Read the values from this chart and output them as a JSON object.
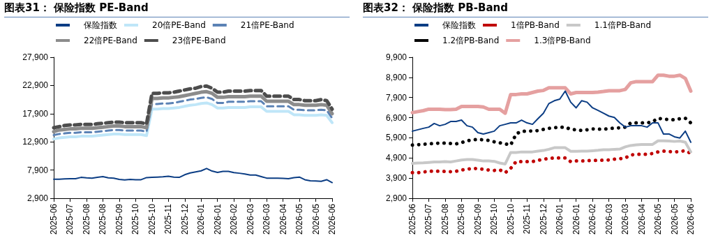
{
  "chart_data": [
    {
      "type": "line",
      "title": "图表31：  保险指数 PE-Band",
      "categories": [
        "2025-06",
        null,
        null,
        "2025-07",
        null,
        null,
        "2025-08",
        null,
        null,
        "2025-08",
        null,
        null,
        "2025-09",
        null,
        null,
        "2025-10",
        null,
        null,
        "2025-10",
        null,
        null,
        "2025-11",
        null,
        null,
        "2025-12",
        null,
        null,
        "2026-01",
        null,
        null,
        "2026-01",
        null,
        null,
        "2026-02",
        null,
        null,
        "2026-03",
        null,
        null,
        "2026-03",
        null,
        null,
        "2026-04",
        null,
        null,
        "2026-05",
        null,
        null,
        "2026-05",
        null,
        null,
        "2026-06"
      ],
      "ylim": [
        2900,
        27900
      ],
      "yticks": [
        {
          "value": 2900,
          "label": "2,900"
        },
        {
          "value": 7900,
          "label": "7,900"
        },
        {
          "value": 12900,
          "label": "12,900"
        },
        {
          "value": 17900,
          "label": "17,900"
        },
        {
          "value": 22900,
          "label": "22,900"
        },
        {
          "value": 27900,
          "label": "27,900"
        }
      ],
      "grid": false,
      "legend": "top",
      "marker": "none",
      "series": [
        {
          "name": "保险指数",
          "color": "#0b3d84",
          "line_style": "solid",
          "values": [
            6280,
            6280,
            6330,
            6370,
            6370,
            6600,
            6510,
            6470,
            6600,
            6740,
            6510,
            6470,
            6230,
            6140,
            6230,
            6190,
            6190,
            6560,
            6600,
            6650,
            6700,
            6790,
            6650,
            6600,
            7070,
            7390,
            7580,
            7760,
            8180,
            7720,
            7480,
            7670,
            7670,
            7440,
            7340,
            7210,
            7020,
            7020,
            6740,
            6470,
            6470,
            6470,
            6420,
            6370,
            6560,
            6650,
            6190,
            6000,
            5960,
            5910,
            6190,
            5680
          ]
        },
        {
          "name": "20倍PE-Band",
          "color": "#bfe6f8",
          "line_style": "solid",
          "values": [
            13400,
            13600,
            13700,
            13800,
            13800,
            13900,
            13900,
            13900,
            14000,
            14100,
            14200,
            14300,
            14300,
            14200,
            14200,
            14200,
            14200,
            14000,
            18700,
            18700,
            18800,
            18800,
            18900,
            19000,
            19200,
            19400,
            19500,
            19700,
            19800,
            19500,
            18900,
            18900,
            19000,
            19000,
            19000,
            19000,
            19100,
            19100,
            19100,
            18300,
            18300,
            18300,
            18300,
            18300,
            17700,
            17700,
            17600,
            17600,
            17600,
            17700,
            17600,
            16300
          ]
        },
        {
          "name": "21倍PE-Band",
          "color": "#5b82b5",
          "line_style": "dashed",
          "values": [
            14100,
            14300,
            14400,
            14500,
            14500,
            14600,
            14600,
            14600,
            14700,
            14800,
            14900,
            15000,
            15000,
            14900,
            14900,
            14900,
            14900,
            14700,
            19600,
            19600,
            19700,
            19700,
            19800,
            20000,
            20200,
            20400,
            20500,
            20700,
            20800,
            20500,
            19800,
            19800,
            20000,
            20000,
            20000,
            20000,
            20100,
            20100,
            20100,
            19200,
            19200,
            19200,
            19200,
            19200,
            18600,
            18600,
            18500,
            18500,
            18500,
            18600,
            18500,
            17100
          ]
        },
        {
          "name": "22倍PE-Band",
          "color": "#8c8c8c",
          "line_style": "solid",
          "values": [
            14700,
            15000,
            15100,
            15200,
            15200,
            15300,
            15300,
            15300,
            15400,
            15500,
            15600,
            15700,
            15700,
            15600,
            15600,
            15600,
            15600,
            15400,
            20600,
            20600,
            20700,
            20700,
            20800,
            20900,
            21100,
            21300,
            21500,
            21700,
            21800,
            21500,
            20800,
            20800,
            20900,
            20900,
            20900,
            20900,
            21000,
            21000,
            21000,
            20100,
            20100,
            20100,
            20100,
            20100,
            19500,
            19500,
            19400,
            19400,
            19400,
            19500,
            19400,
            17900
          ]
        },
        {
          "name": "23倍PE-Band",
          "color": "#4d4d4d",
          "line_style": "dashed",
          "values": [
            15400,
            15600,
            15800,
            15900,
            15900,
            16000,
            16000,
            16000,
            16100,
            16200,
            16300,
            16400,
            16400,
            16300,
            16300,
            16300,
            16300,
            16100,
            21500,
            21500,
            21600,
            21600,
            21700,
            21900,
            22100,
            22300,
            22400,
            22700,
            22800,
            22400,
            21700,
            21700,
            21900,
            21900,
            21900,
            21900,
            22000,
            22000,
            22000,
            21000,
            21000,
            21000,
            21000,
            21000,
            20400,
            20400,
            20200,
            20200,
            20200,
            20400,
            20200,
            18700
          ]
        }
      ]
    },
    {
      "type": "line",
      "title": "图表32：  保险指数 PB-Band",
      "categories": [
        "2025-06",
        null,
        null,
        "2025-07",
        null,
        null,
        "2025-08",
        null,
        null,
        "2025-08",
        null,
        null,
        "2025-09",
        null,
        null,
        "2025-10",
        null,
        null,
        "2025-10",
        null,
        null,
        "2025-11",
        null,
        null,
        "2025-12",
        null,
        null,
        "2026-01",
        null,
        null,
        "2026-01",
        null,
        null,
        "2026-02",
        null,
        null,
        "2026-03",
        null,
        null,
        "2026-03",
        null,
        null,
        "2026-04",
        null,
        null,
        "2026-05",
        null,
        null,
        "2026-05",
        null,
        null,
        "2026-06"
      ],
      "ylim": [
        2900,
        9900
      ],
      "yticks": [
        {
          "value": 2900,
          "label": "2,900"
        },
        {
          "value": 3900,
          "label": "3,900"
        },
        {
          "value": 4900,
          "label": "4,900"
        },
        {
          "value": 5900,
          "label": "5,900"
        },
        {
          "value": 6900,
          "label": "6,900"
        },
        {
          "value": 7900,
          "label": "7,900"
        },
        {
          "value": 8900,
          "label": "8,900"
        },
        {
          "value": 9900,
          "label": "9,900"
        }
      ],
      "grid": false,
      "legend": "top",
      "marker": "none",
      "series": [
        {
          "name": "保险指数",
          "color": "#0b3d84",
          "line_style": "solid",
          "values": [
            6230,
            6300,
            6370,
            6430,
            6610,
            6500,
            6570,
            6710,
            6710,
            6780,
            6500,
            6430,
            6160,
            6090,
            6160,
            6230,
            6500,
            6570,
            6640,
            6640,
            6780,
            6640,
            6570,
            6850,
            7120,
            7600,
            7740,
            7820,
            8220,
            7670,
            7390,
            7740,
            7670,
            7390,
            7260,
            7120,
            6980,
            6910,
            6640,
            6430,
            6500,
            6500,
            6500,
            6430,
            6640,
            6640,
            6090,
            6090,
            5950,
            5890,
            6230,
            5680
          ]
        },
        {
          "name": "1倍PB-Band",
          "color": "#c00000",
          "line_style": "dotted",
          "values": [
            4170,
            4170,
            4200,
            4240,
            4240,
            4240,
            4230,
            4220,
            4240,
            4300,
            4340,
            4380,
            4370,
            4340,
            4300,
            4280,
            4310,
            4170,
            4380,
            4720,
            4720,
            4720,
            4720,
            4780,
            4830,
            4880,
            4900,
            4900,
            4900,
            4720,
            4750,
            4750,
            4760,
            4780,
            4780,
            4790,
            4800,
            4840,
            4860,
            4900,
            5050,
            5080,
            5080,
            5080,
            5120,
            5200,
            5240,
            5220,
            5200,
            5220,
            5260,
            5130
          ]
        },
        {
          "name": "1.1倍PB-Band",
          "color": "#c8c8c8",
          "line_style": "solid",
          "values": [
            4630,
            4650,
            4660,
            4680,
            4700,
            4700,
            4720,
            4700,
            4750,
            4800,
            4820,
            4820,
            4790,
            4750,
            4750,
            4730,
            4650,
            4600,
            5170,
            5170,
            5200,
            5200,
            5200,
            5240,
            5270,
            5330,
            5410,
            5410,
            5410,
            5230,
            5230,
            5240,
            5240,
            5260,
            5280,
            5310,
            5310,
            5330,
            5340,
            5450,
            5520,
            5550,
            5570,
            5570,
            5570,
            5750,
            5750,
            5740,
            5720,
            5740,
            5680,
            5200
          ]
        },
        {
          "name": "1.2倍PB-Band",
          "color": "#000000",
          "line_style": "dotted",
          "values": [
            5540,
            5560,
            5580,
            5600,
            5620,
            5640,
            5640,
            5620,
            5600,
            5660,
            5750,
            5800,
            5820,
            5800,
            5770,
            5700,
            5650,
            5600,
            5540,
            6090,
            6230,
            6230,
            6240,
            6260,
            6320,
            6370,
            6400,
            6430,
            6430,
            6320,
            6300,
            6260,
            6300,
            6340,
            6330,
            6320,
            6360,
            6380,
            6400,
            6430,
            6640,
            6640,
            6640,
            6640,
            6700,
            6870,
            6830,
            6800,
            6800,
            6850,
            6870,
            6640
          ]
        },
        {
          "name": "1.3倍PB-Band",
          "color": "#e5a0a0",
          "line_style": "solid",
          "values": [
            7150,
            7200,
            7250,
            7320,
            7320,
            7320,
            7300,
            7300,
            7320,
            7460,
            7460,
            7460,
            7460,
            7430,
            7320,
            7320,
            7320,
            7120,
            8050,
            8050,
            8080,
            8080,
            8150,
            8220,
            8250,
            8380,
            8380,
            8380,
            8380,
            8080,
            8150,
            8150,
            8150,
            8150,
            8170,
            8200,
            8240,
            8240,
            8240,
            8300,
            8630,
            8690,
            8690,
            8690,
            8690,
            9010,
            9010,
            8960,
            8960,
            9010,
            8850,
            8220
          ]
        }
      ]
    }
  ]
}
